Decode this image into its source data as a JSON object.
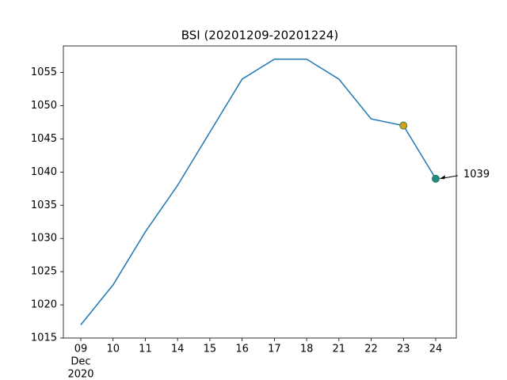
{
  "chart_data": {
    "type": "line",
    "title": "BSI (20201209-20201224)",
    "categories": [
      "09",
      "10",
      "11",
      "14",
      "15",
      "16",
      "17",
      "18",
      "21",
      "22",
      "23",
      "24"
    ],
    "x_month": "Dec",
    "x_year": "2020",
    "series": [
      {
        "name": "BSI",
        "color": "#1f77b4",
        "values": [
          1017,
          1023,
          1031,
          1038,
          1046,
          1054,
          1057,
          1057,
          1054,
          1048,
          1047,
          1039
        ],
        "marker_colors": [
          null,
          null,
          null,
          null,
          null,
          null,
          null,
          null,
          null,
          null,
          "#d4a21a",
          "#1f8a8a"
        ],
        "marker_edge": "#2e7d5a"
      }
    ],
    "ylim": [
      1015,
      1059
    ],
    "yticks": [
      1015,
      1020,
      1025,
      1030,
      1035,
      1040,
      1045,
      1050,
      1055
    ],
    "grid": false
  }
}
